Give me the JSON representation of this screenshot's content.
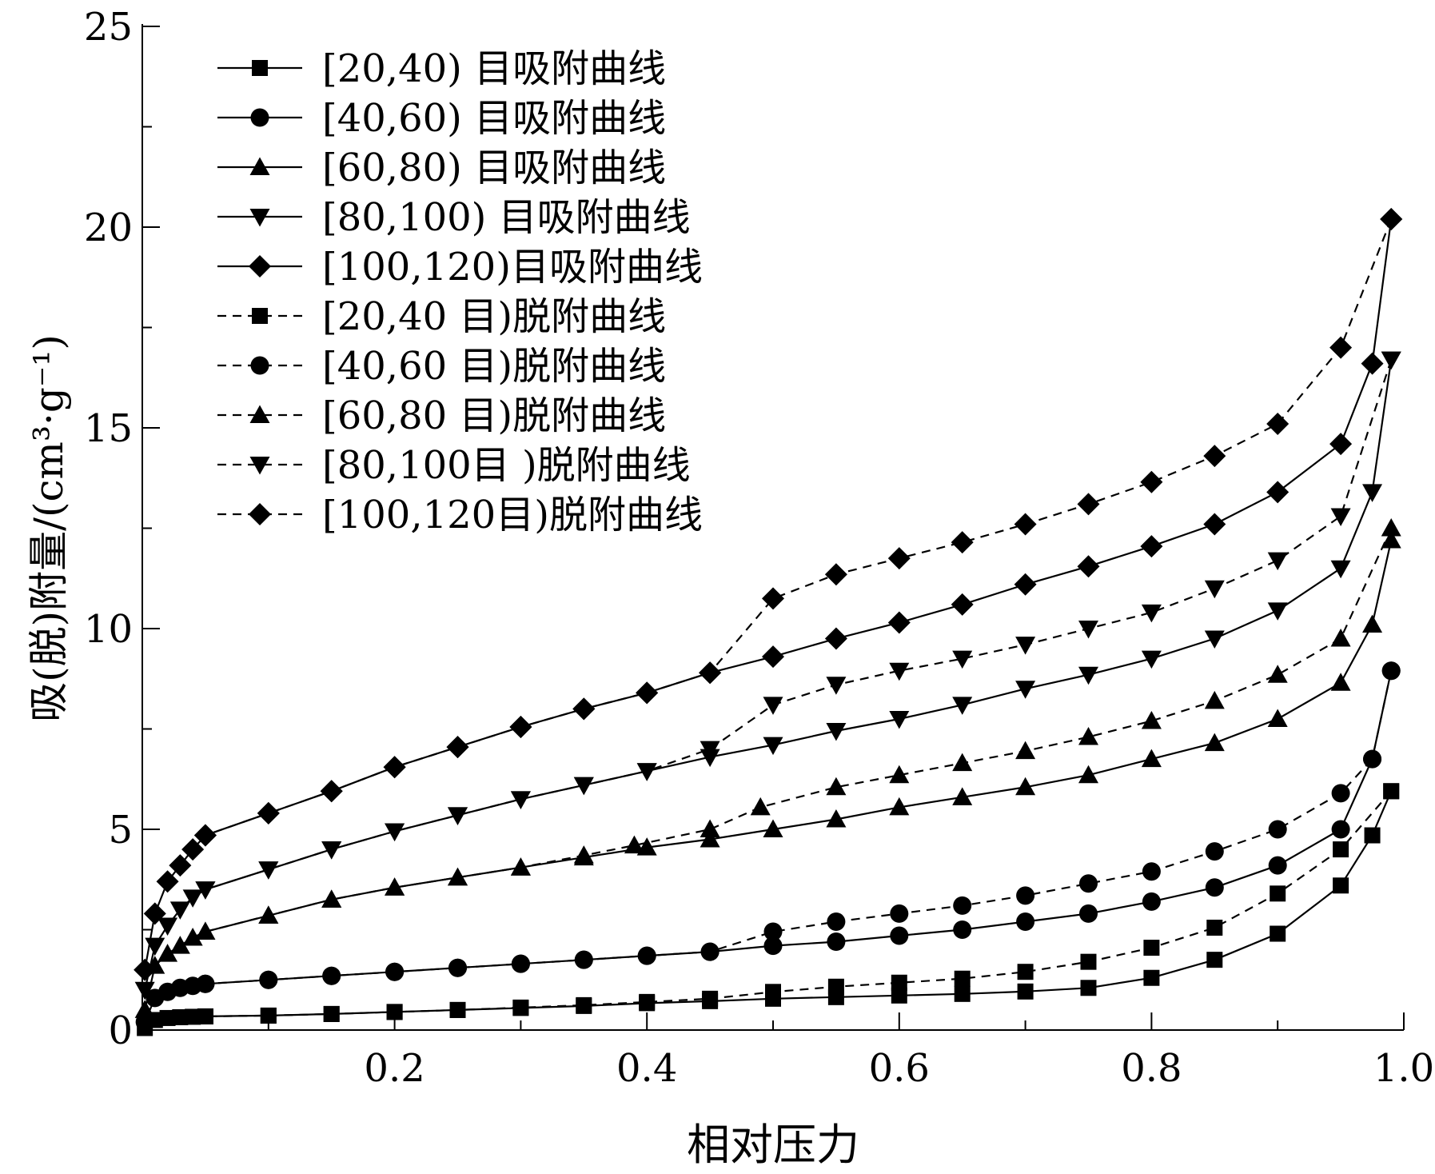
{
  "chart_data": {
    "type": "line",
    "xlabel": "相对压力",
    "ylabel": "吸(脱)附量/(cm³·g⁻¹)",
    "xlim": [
      0,
      1.0
    ],
    "ylim": [
      0,
      25
    ],
    "xticks": [
      0.2,
      0.4,
      0.6,
      0.8,
      1.0
    ],
    "xtick_labels": [
      "0.2",
      "0.4",
      "0.6",
      "0.8",
      "1.0"
    ],
    "yticks": [
      0,
      5,
      10,
      15,
      20,
      25
    ],
    "ytick_labels": [
      "0",
      "5",
      "10",
      "15",
      "20",
      "25"
    ],
    "grid": false,
    "legend_position": "top-left",
    "series": [
      {
        "name": "[20,40) 目吸附曲线",
        "marker": "square",
        "dash": "solid",
        "x": [
          0.002,
          0.01,
          0.02,
          0.03,
          0.04,
          0.05,
          0.1,
          0.15,
          0.2,
          0.25,
          0.3,
          0.35,
          0.4,
          0.45,
          0.5,
          0.55,
          0.6,
          0.65,
          0.7,
          0.75,
          0.8,
          0.85,
          0.9,
          0.95,
          0.975,
          0.99
        ],
        "y": [
          0.05,
          0.25,
          0.3,
          0.32,
          0.33,
          0.34,
          0.36,
          0.4,
          0.45,
          0.5,
          0.55,
          0.6,
          0.67,
          0.72,
          0.78,
          0.82,
          0.86,
          0.9,
          0.96,
          1.05,
          1.3,
          1.75,
          2.4,
          3.6,
          4.85,
          5.95
        ]
      },
      {
        "name": "[40,60) 目吸附曲线",
        "marker": "circle",
        "dash": "solid",
        "x": [
          0.002,
          0.01,
          0.02,
          0.03,
          0.04,
          0.05,
          0.1,
          0.15,
          0.2,
          0.25,
          0.3,
          0.35,
          0.4,
          0.45,
          0.5,
          0.55,
          0.6,
          0.65,
          0.7,
          0.75,
          0.8,
          0.85,
          0.9,
          0.95,
          0.975,
          0.99
        ],
        "y": [
          0.2,
          0.8,
          0.95,
          1.05,
          1.1,
          1.15,
          1.25,
          1.35,
          1.45,
          1.55,
          1.65,
          1.75,
          1.85,
          1.95,
          2.1,
          2.2,
          2.35,
          2.5,
          2.7,
          2.9,
          3.2,
          3.55,
          4.1,
          5.0,
          6.75,
          8.95
        ]
      },
      {
        "name": "[60,80) 目吸附曲线",
        "marker": "triangle",
        "dash": "solid",
        "x": [
          0.002,
          0.01,
          0.02,
          0.03,
          0.04,
          0.05,
          0.1,
          0.15,
          0.2,
          0.25,
          0.3,
          0.35,
          0.4,
          0.45,
          0.5,
          0.55,
          0.6,
          0.65,
          0.7,
          0.75,
          0.8,
          0.85,
          0.9,
          0.95,
          0.975,
          0.99
        ],
        "y": [
          0.5,
          1.6,
          1.9,
          2.1,
          2.3,
          2.45,
          2.85,
          3.25,
          3.55,
          3.8,
          4.05,
          4.3,
          4.55,
          4.75,
          5.0,
          5.25,
          5.55,
          5.8,
          6.05,
          6.35,
          6.75,
          7.15,
          7.75,
          8.65,
          10.1,
          12.2
        ]
      },
      {
        "name": "[80,100) 目吸附曲线",
        "marker": "triangle-down",
        "dash": "solid",
        "x": [
          0.002,
          0.01,
          0.02,
          0.03,
          0.04,
          0.05,
          0.1,
          0.15,
          0.2,
          0.25,
          0.3,
          0.35,
          0.4,
          0.45,
          0.5,
          0.55,
          0.6,
          0.65,
          0.7,
          0.75,
          0.8,
          0.85,
          0.9,
          0.95,
          0.975,
          0.99
        ],
        "y": [
          1.0,
          2.1,
          2.6,
          3.0,
          3.3,
          3.5,
          4.0,
          4.5,
          4.95,
          5.35,
          5.75,
          6.1,
          6.45,
          6.8,
          7.1,
          7.45,
          7.75,
          8.1,
          8.5,
          8.85,
          9.25,
          9.75,
          10.45,
          11.5,
          13.4,
          16.7
        ]
      },
      {
        "name": "[100,120)目吸附曲线",
        "marker": "diamond",
        "dash": "solid",
        "x": [
          0.002,
          0.01,
          0.02,
          0.03,
          0.04,
          0.05,
          0.1,
          0.15,
          0.2,
          0.25,
          0.3,
          0.35,
          0.4,
          0.45,
          0.5,
          0.55,
          0.6,
          0.65,
          0.7,
          0.75,
          0.8,
          0.85,
          0.9,
          0.95,
          0.975,
          0.99
        ],
        "y": [
          1.5,
          2.9,
          3.7,
          4.1,
          4.5,
          4.85,
          5.4,
          5.95,
          6.55,
          7.05,
          7.55,
          8.0,
          8.4,
          8.9,
          9.3,
          9.75,
          10.15,
          10.6,
          11.1,
          11.55,
          12.05,
          12.6,
          13.4,
          14.6,
          16.6,
          20.2
        ]
      },
      {
        "name": "[20,40 目)脱附曲线",
        "marker": "square",
        "dash": "dashed",
        "x": [
          0.99,
          0.95,
          0.9,
          0.85,
          0.8,
          0.75,
          0.7,
          0.65,
          0.6,
          0.55,
          0.5,
          0.45,
          0.4,
          0.35,
          0.3,
          0.25,
          0.2,
          0.15,
          0.1,
          0.05
        ],
        "y": [
          5.95,
          4.5,
          3.4,
          2.55,
          2.05,
          1.7,
          1.45,
          1.28,
          1.18,
          1.08,
          0.95,
          0.78,
          0.7,
          0.62,
          0.56,
          0.5,
          0.45,
          0.4,
          0.36,
          0.34
        ]
      },
      {
        "name": "[40,60 目)脱附曲线",
        "marker": "circle",
        "dash": "dashed",
        "x": [
          0.99,
          0.975,
          0.95,
          0.9,
          0.85,
          0.8,
          0.75,
          0.7,
          0.65,
          0.6,
          0.55,
          0.5,
          0.45,
          0.4,
          0.35,
          0.3,
          0.25,
          0.2,
          0.15,
          0.1,
          0.05
        ],
        "y": [
          8.95,
          6.75,
          5.9,
          5.0,
          4.45,
          3.95,
          3.65,
          3.35,
          3.1,
          2.9,
          2.7,
          2.45,
          1.95,
          1.85,
          1.75,
          1.65,
          1.55,
          1.45,
          1.35,
          1.25,
          1.15
        ]
      },
      {
        "name": "[60,80 目)脱附曲线",
        "marker": "triangle",
        "dash": "dashed",
        "x": [
          0.99,
          0.95,
          0.9,
          0.85,
          0.8,
          0.75,
          0.7,
          0.65,
          0.6,
          0.55,
          0.49,
          0.45,
          0.39,
          0.35,
          0.3,
          0.25,
          0.2,
          0.15,
          0.1,
          0.05
        ],
        "y": [
          12.5,
          9.75,
          8.85,
          8.2,
          7.7,
          7.3,
          6.95,
          6.65,
          6.35,
          6.05,
          5.55,
          5.0,
          4.6,
          4.35,
          4.05,
          3.8,
          3.55,
          3.25,
          2.85,
          2.45
        ]
      },
      {
        "name": "[80,100目 )脱附曲线",
        "marker": "triangle-down",
        "dash": "dashed",
        "x": [
          0.99,
          0.95,
          0.9,
          0.85,
          0.8,
          0.75,
          0.7,
          0.65,
          0.6,
          0.55,
          0.5,
          0.45,
          0.4,
          0.35,
          0.3,
          0.25,
          0.2,
          0.15,
          0.1,
          0.05
        ],
        "y": [
          16.7,
          12.8,
          11.7,
          11.0,
          10.4,
          10.0,
          9.6,
          9.25,
          8.95,
          8.6,
          8.1,
          7.0,
          6.45,
          6.1,
          5.75,
          5.35,
          4.95,
          4.5,
          4.0,
          3.5
        ]
      },
      {
        "name": "[100,120目)脱附曲线",
        "marker": "diamond",
        "dash": "dashed",
        "x": [
          0.99,
          0.95,
          0.9,
          0.85,
          0.8,
          0.75,
          0.7,
          0.65,
          0.6,
          0.55,
          0.5,
          0.45,
          0.4,
          0.35,
          0.3,
          0.25,
          0.2,
          0.15,
          0.1,
          0.05
        ],
        "y": [
          20.2,
          17.0,
          15.1,
          14.3,
          13.65,
          13.1,
          12.6,
          12.15,
          11.75,
          11.35,
          10.75,
          8.9,
          8.4,
          8.0,
          7.55,
          7.05,
          6.55,
          5.95,
          5.4,
          4.85
        ]
      }
    ]
  }
}
